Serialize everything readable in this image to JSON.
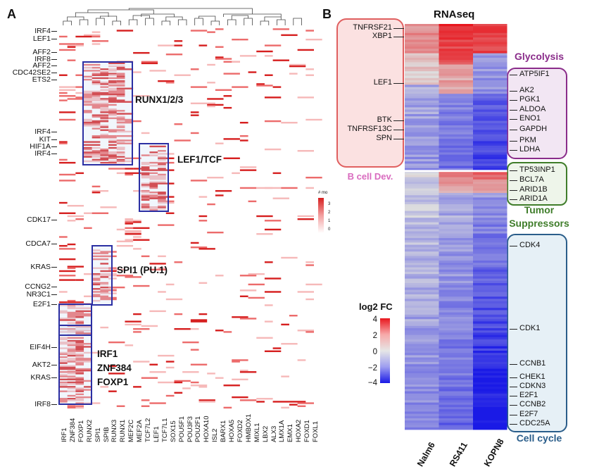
{
  "panel_a": {
    "letter": "A",
    "row_labels": [
      "IRF4",
      "LEF1",
      "AFF2",
      "IRF8",
      "AFF2",
      "CDC42SE2",
      "ETS2",
      "IRF4",
      "KIT",
      "HIF1A",
      "IRF4",
      "CDK17",
      "CDCA7",
      "KRAS",
      "CCNG2",
      "NR3C1",
      "E2F1",
      "EIF4H",
      "AKT2",
      "KRAS",
      "IRF8"
    ],
    "column_labels": [
      "IRF1",
      "ZNF384",
      "FOXP1",
      "RUNX2",
      "SPI1",
      "SPIB",
      "RUNX3",
      "RUNX1",
      "MEF2C",
      "MEF2A",
      "TCF7L2",
      "LEF1",
      "TCF7L1",
      "SOX15",
      "POU5F1",
      "POU3F3",
      "POU2F1",
      "HOXA10",
      "ISL2",
      "BARX1",
      "HOXA5",
      "FOXD2",
      "HMBOX1",
      "MIXL1",
      "LBX2",
      "ALX3",
      "LMX1A",
      "EMX1",
      "HOXA2",
      "FOXD1",
      "FOXL1"
    ],
    "box_labels": {
      "runx": "RUNX1/2/3",
      "lef": "LEF1/TCF",
      "spi": "SPI1 (PU.1)",
      "irf_lines": [
        "IRF1",
        "ZNF384",
        "FOXP1"
      ]
    },
    "legend": {
      "title": "# mo",
      "ticks": [
        "3",
        "2",
        "1",
        "0"
      ]
    },
    "colors": {
      "high": "#d61f1f",
      "mid": "#f3a0a0",
      "low": "#ffffff",
      "box": "#2b2fa3"
    }
  },
  "panel_b": {
    "letter": "B",
    "title": "RNAseq",
    "columns": [
      "Nalm6",
      "RS411",
      "KOPN8"
    ],
    "left_genes": [
      "TNFRSF21",
      "XBP1",
      "LEF1",
      "BTK",
      "TNFRSF13C",
      "SPN"
    ],
    "left_category": "B cell Dev.",
    "glycolysis": {
      "title": "Glycolysis",
      "genes": [
        "ATP5IF1",
        "AK2",
        "PGK1",
        "ALDOA",
        "ENO1",
        "GAPDH",
        "PKM",
        "LDHA"
      ]
    },
    "tumor": {
      "title_lines": [
        "Tumor",
        "Suppressors"
      ],
      "genes": [
        "TP53INP1",
        "BCL7A",
        "ARID1B",
        "ARID1A"
      ]
    },
    "cellcycle": {
      "title": "Cell cycle",
      "genes": [
        "CDK4",
        "CDK1",
        "CCNB1",
        "CHEK1",
        "CDKN3",
        "E2F1",
        "CCNB2",
        "E2F7",
        "CDC25A"
      ]
    },
    "legend": {
      "title": "log2 FC",
      "ticks": [
        "4",
        "2",
        "0",
        "−2",
        "−4"
      ]
    },
    "colors": {
      "pos": "#e8171e",
      "neutral": "#dcdcdc",
      "neg": "#1a1ae6",
      "bcell_border": "#e06060",
      "bcell_fill": "#fbe1e1",
      "bcell_text": "#d96bbf",
      "gly_border": "#8a2c8a",
      "gly_fill": "#f2e6f3",
      "tum_border": "#3f7d2a",
      "tum_fill": "#eef5ea",
      "cc_border": "#2a5d8a",
      "cc_fill": "#e6f0f6"
    }
  }
}
